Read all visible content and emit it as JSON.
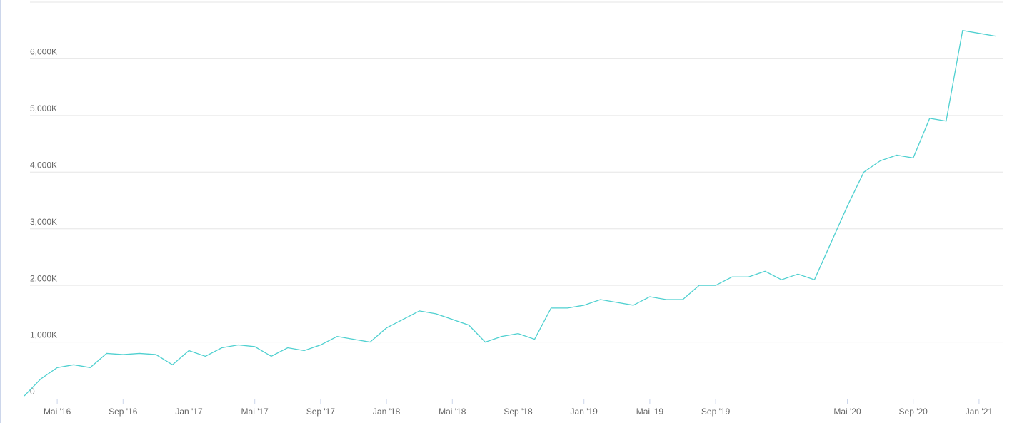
{
  "chart_data": {
    "type": "line",
    "x": [
      "2016-03",
      "2016-04",
      "2016-05",
      "2016-06",
      "2016-07",
      "2016-08",
      "2016-09",
      "2016-10",
      "2016-11",
      "2016-12",
      "2017-01",
      "2017-02",
      "2017-03",
      "2017-04",
      "2017-05",
      "2017-06",
      "2017-07",
      "2017-08",
      "2017-09",
      "2017-10",
      "2017-11",
      "2017-12",
      "2018-01",
      "2018-02",
      "2018-03",
      "2018-04",
      "2018-05",
      "2018-06",
      "2018-07",
      "2018-08",
      "2018-09",
      "2018-10",
      "2018-11",
      "2018-12",
      "2019-01",
      "2019-02",
      "2019-03",
      "2019-04",
      "2019-05",
      "2019-06",
      "2019-07",
      "2019-08",
      "2019-09",
      "2019-10",
      "2019-11",
      "2019-12",
      "2020-01",
      "2020-02",
      "2020-03",
      "2020-04",
      "2020-05",
      "2020-06",
      "2020-07",
      "2020-08",
      "2020-09",
      "2020-10",
      "2020-11",
      "2020-12",
      "2021-01",
      "2021-02"
    ],
    "series": [
      {
        "color": "#4fd0d0",
        "values": [
          50,
          350,
          550,
          600,
          550,
          800,
          780,
          800,
          780,
          600,
          850,
          750,
          900,
          950,
          920,
          750,
          900,
          850,
          950,
          1100,
          1050,
          1000,
          1250,
          1400,
          1550,
          1500,
          1400,
          1300,
          1000,
          1100,
          1150,
          1050,
          1600,
          1600,
          1650,
          1750,
          1700,
          1650,
          1800,
          1750,
          1750,
          2000,
          2000,
          2150,
          2150,
          2250,
          2100,
          2200,
          2100,
          2750,
          3400,
          4000,
          4200,
          4300,
          4250,
          4950,
          4900,
          6500,
          6450,
          6400
        ]
      }
    ],
    "xlim": [
      "2016-03",
      "2021-02"
    ],
    "xticks": [
      {
        "value": "2016-05",
        "label": "Mai '16"
      },
      {
        "value": "2016-09",
        "label": "Sep '16"
      },
      {
        "value": "2017-01",
        "label": "Jan '17"
      },
      {
        "value": "2017-05",
        "label": "Mai '17"
      },
      {
        "value": "2017-09",
        "label": "Sep '17"
      },
      {
        "value": "2018-01",
        "label": "Jan '18"
      },
      {
        "value": "2018-05",
        "label": "Mai '18"
      },
      {
        "value": "2018-09",
        "label": "Sep '18"
      },
      {
        "value": "2019-01",
        "label": "Jan '19"
      },
      {
        "value": "2019-05",
        "label": "Mai '19"
      },
      {
        "value": "2019-09",
        "label": "Sep '19"
      },
      {
        "value": "2020-05",
        "label": "Mai '20"
      },
      {
        "value": "2020-09",
        "label": "Sep '20"
      },
      {
        "value": "2021-01",
        "label": "Jan '21"
      }
    ],
    "ylim": [
      0,
      7000
    ],
    "yticks": [
      0,
      {
        "value": 1000,
        "label": "1,000K"
      },
      {
        "value": 2000,
        "label": "2,000K"
      },
      {
        "value": 3000,
        "label": "3,000K"
      },
      {
        "value": 4000,
        "label": "4,000K"
      },
      {
        "value": 5000,
        "label": "5,000K"
      },
      {
        "value": 6000,
        "label": "6,000K"
      }
    ],
    "grid": true
  }
}
